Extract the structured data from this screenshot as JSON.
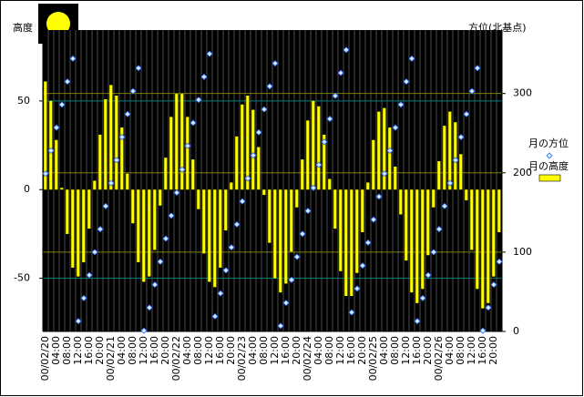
{
  "chart_data": {
    "type": "bar",
    "y_label": "高度",
    "y2_label": "方位(北基点)",
    "categories": [
      "00/02/20",
      null,
      "04:00",
      null,
      "08:00",
      null,
      "12:00",
      null,
      "16:00",
      null,
      "20:00",
      null,
      "00/02/21",
      null,
      "04:00",
      null,
      "08:00",
      null,
      "12:00",
      null,
      "16:00",
      null,
      "20:00",
      null,
      "00/02/22",
      null,
      "04:00",
      null,
      "08:00",
      null,
      "12:00",
      null,
      "16:00",
      null,
      "20:00",
      null,
      "00/02/23",
      null,
      "04:00",
      null,
      "08:00",
      null,
      "12:00",
      null,
      "16:00",
      null,
      "20:00",
      null,
      "00/02/24",
      null,
      "04:00",
      null,
      "08:00",
      null,
      "12:00",
      null,
      "16:00",
      null,
      "20:00",
      null,
      "00/02/25",
      null,
      "04:00",
      null,
      "08:00",
      null,
      "12:00",
      null,
      "16:00",
      null,
      "20:00",
      null,
      "00/02/26",
      null,
      "04:00",
      null,
      "08:00",
      null,
      "12:00",
      null,
      "16:00",
      null,
      "20:00",
      null
    ],
    "series": [
      {
        "name": "月の高度",
        "color": "#ffff00",
        "values": [
          61,
          50,
          28,
          1,
          -25,
          -44,
          -49,
          -41,
          -22,
          5,
          31,
          51,
          59,
          53,
          35,
          9,
          -19,
          -41,
          -52,
          -49,
          -34,
          -9,
          18,
          41,
          54,
          54,
          41,
          17,
          -11,
          -36,
          -52,
          -55,
          -44,
          -23,
          4,
          30,
          48,
          53,
          45,
          24,
          -3,
          -30,
          -50,
          -58,
          -53,
          -35,
          -10,
          17,
          39,
          50,
          47,
          31,
          6,
          -22,
          -46,
          -60,
          -60,
          -47,
          -24,
          4,
          28,
          44,
          46,
          35,
          13,
          -14,
          -40,
          -58,
          -64,
          -56,
          -37,
          -10,
          16,
          36,
          44,
          38,
          20,
          -6,
          -34,
          -56,
          -67,
          -64,
          -49,
          -24
        ]
      },
      {
        "name": "月の方位",
        "type": "scatter",
        "axis": "y2",
        "color": "#ccecff",
        "values": [
          199,
          228,
          257,
          286,
          315,
          344,
          13,
          42,
          71,
          100,
          129,
          158,
          187,
          216,
          245,
          274,
          303,
          332,
          1,
          30,
          59,
          88,
          117,
          146,
          175,
          204,
          234,
          263,
          292,
          321,
          350,
          19,
          48,
          77,
          106,
          135,
          164,
          193,
          222,
          251,
          280,
          309,
          338,
          7,
          36,
          65,
          94,
          123,
          152,
          181,
          210,
          239,
          268,
          297,
          326,
          355,
          24,
          54,
          83,
          112,
          141,
          170,
          199,
          228,
          257,
          286,
          315,
          344,
          13,
          42,
          71,
          100,
          129,
          158,
          187,
          216,
          245,
          274,
          303,
          332,
          1,
          30,
          59,
          88
        ]
      }
    ],
    "ylim": [
      -80,
      90
    ],
    "yticks": [
      -50,
      0,
      50
    ],
    "y2lim": [
      0,
      380
    ],
    "y2ticks": [
      0,
      100,
      200,
      300
    ],
    "grid": true,
    "legend": "right"
  }
}
